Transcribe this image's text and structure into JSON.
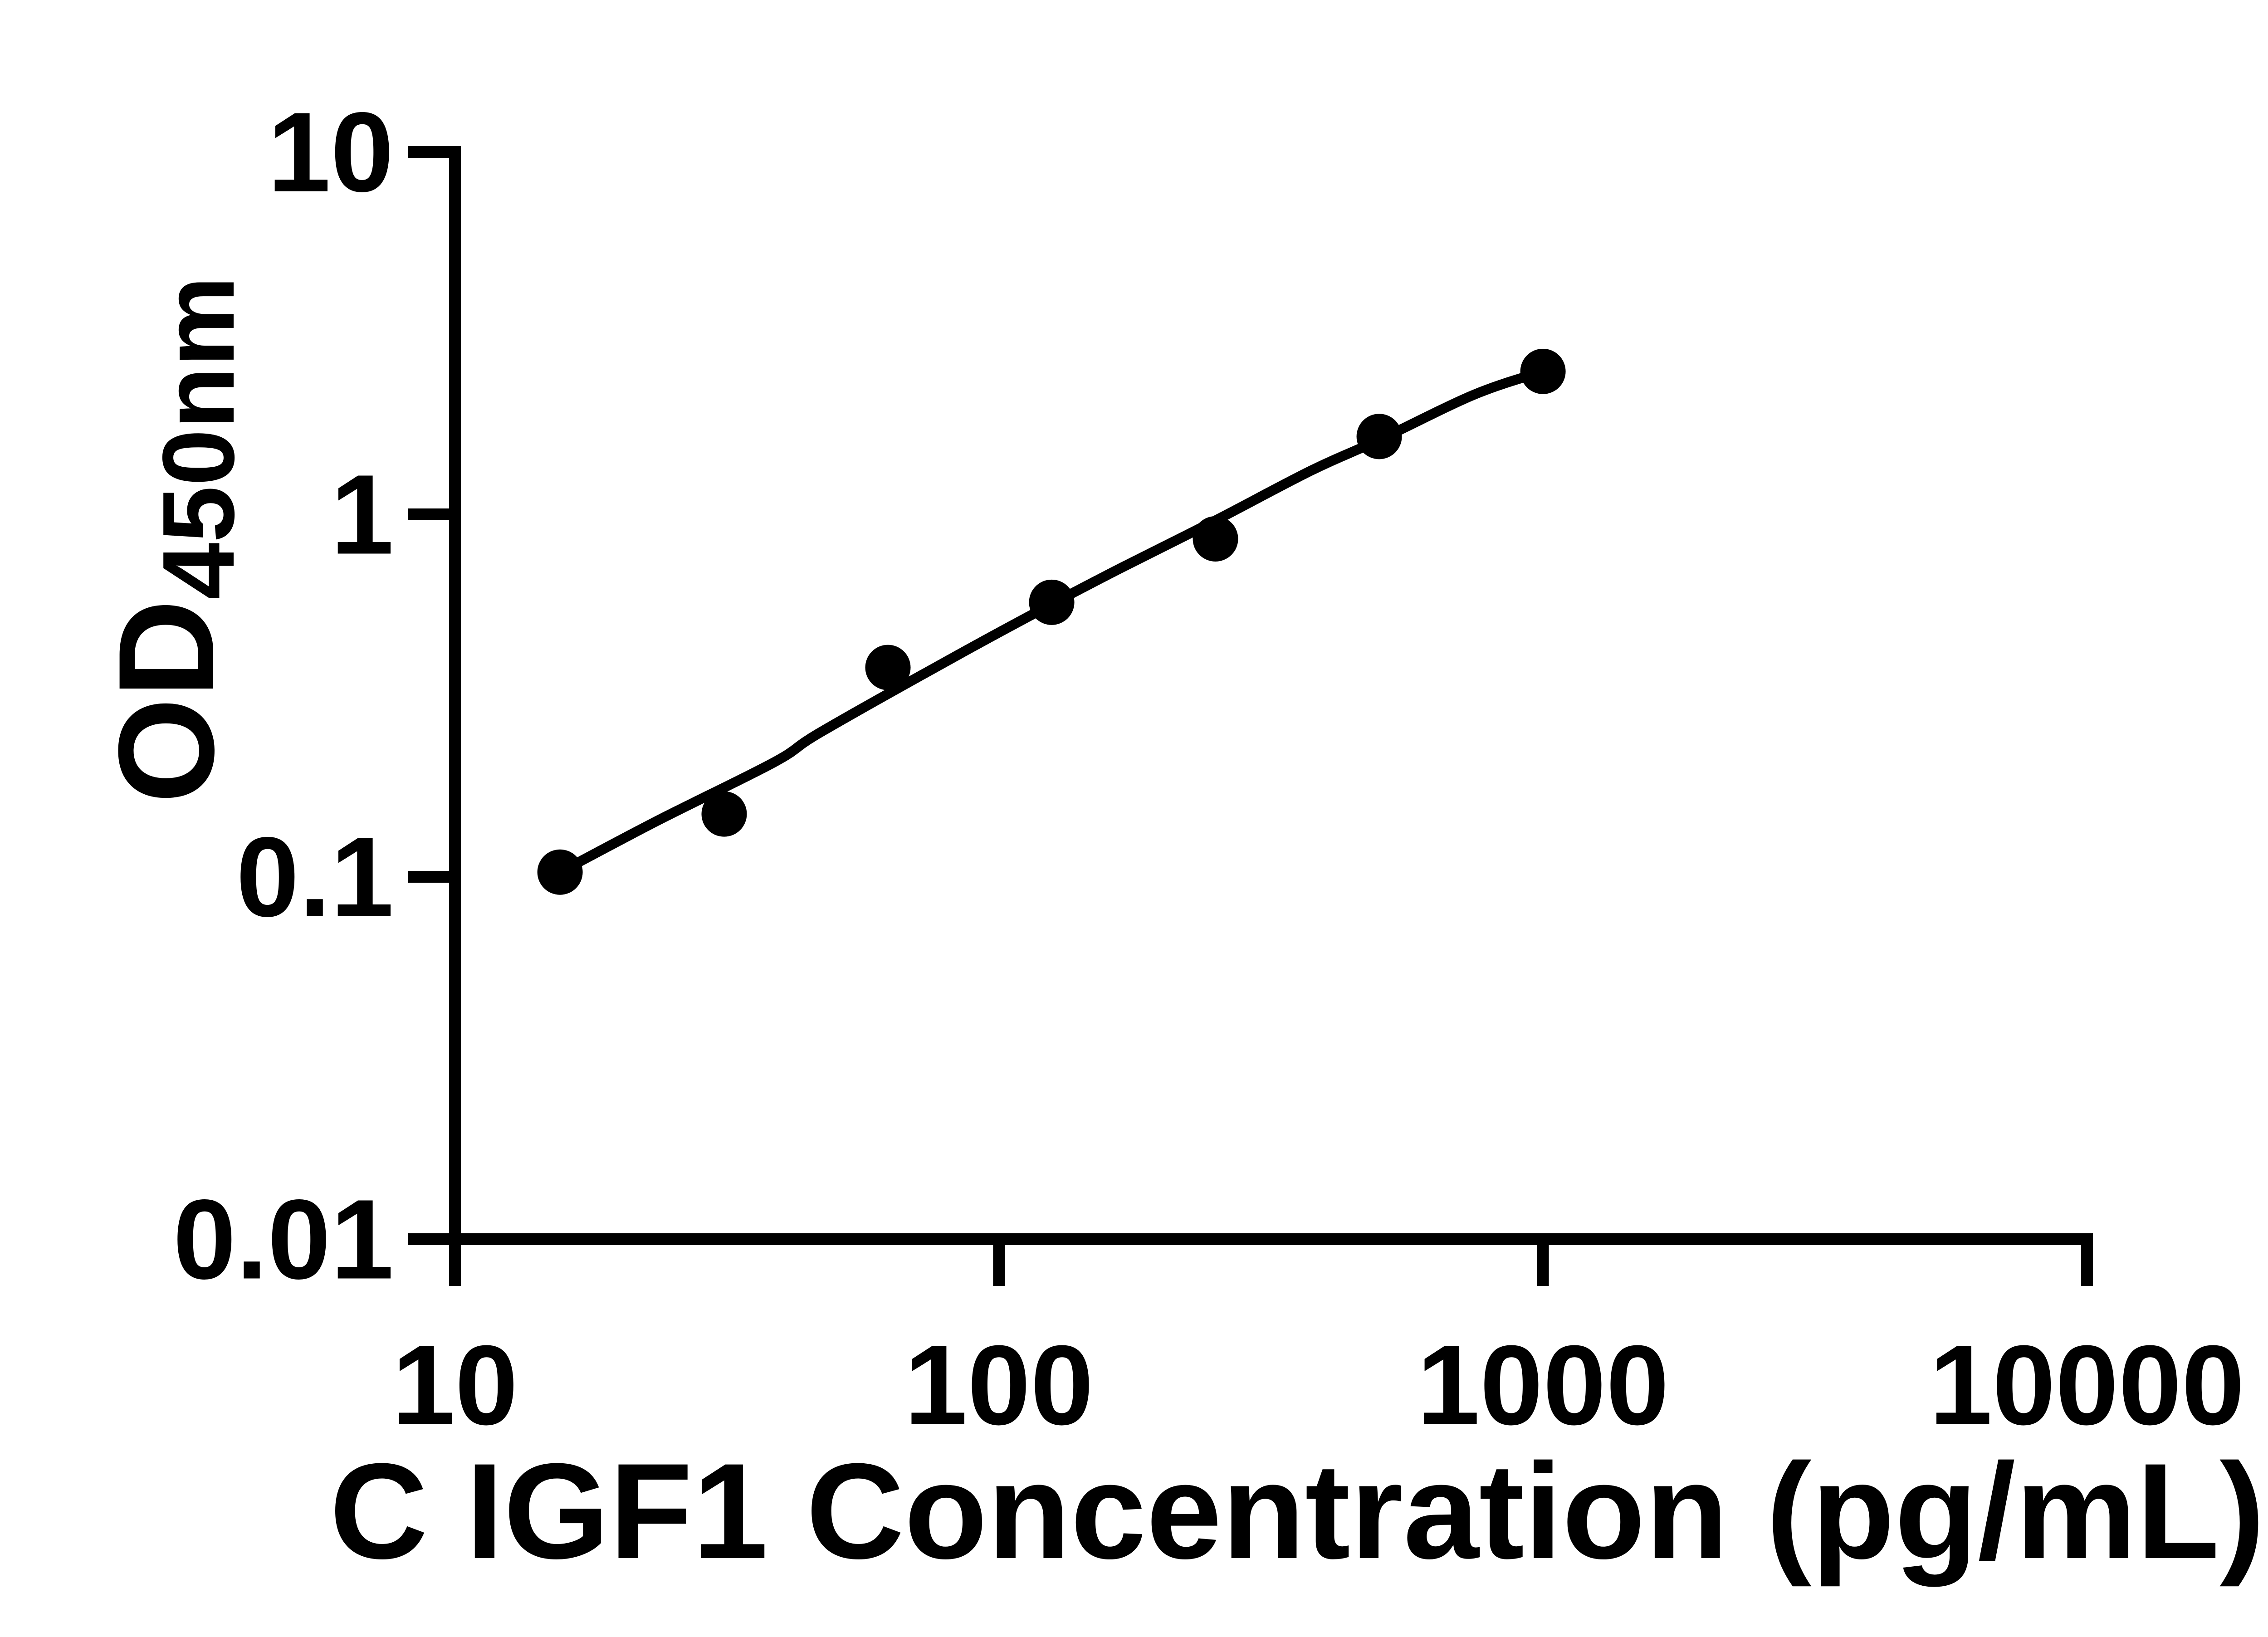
{
  "page": {
    "background": "#ffffff",
    "foreground": "#000000"
  },
  "chart_data": {
    "type": "scatter",
    "title": "",
    "xlabel": "C IGF1 Concentration (pg/mL)",
    "ylabel_main": "OD",
    "ylabel_sub": "450nm",
    "x_scale": "log",
    "y_scale": "log",
    "xlim": [
      10,
      10000
    ],
    "ylim": [
      0.01,
      10
    ],
    "grid": false,
    "legend_position": "none",
    "axis_color": "#000000",
    "x_ticks": [
      {
        "value": 10,
        "label": "10"
      },
      {
        "value": 100,
        "label": "100"
      },
      {
        "value": 1000,
        "label": "1000"
      },
      {
        "value": 10000,
        "label": "10000"
      }
    ],
    "y_ticks": [
      {
        "value": 0.01,
        "label": "0.01"
      },
      {
        "value": 0.1,
        "label": "0.1"
      },
      {
        "value": 1,
        "label": "1"
      },
      {
        "value": 10,
        "label": "10"
      }
    ],
    "series": [
      {
        "name": "standard-points",
        "type": "scatter",
        "marker": "circle",
        "color": "#000000",
        "points": [
          {
            "x": 15.6,
            "y": 0.103
          },
          {
            "x": 31.25,
            "y": 0.149
          },
          {
            "x": 62.5,
            "y": 0.378
          },
          {
            "x": 125,
            "y": 0.572
          },
          {
            "x": 250,
            "y": 0.856
          },
          {
            "x": 500,
            "y": 1.64
          },
          {
            "x": 1000,
            "y": 2.48
          }
        ]
      },
      {
        "name": "fit-curve",
        "type": "line",
        "color": "#000000",
        "points": [
          {
            "x": 15.6,
            "y": 0.103
          },
          {
            "x": 23.6,
            "y": 0.143
          },
          {
            "x": 38.6,
            "y": 0.207
          },
          {
            "x": 47.1,
            "y": 0.251
          },
          {
            "x": 83.7,
            "y": 0.408
          },
          {
            "x": 124.9,
            "y": 0.565
          },
          {
            "x": 167.2,
            "y": 0.71
          },
          {
            "x": 249.3,
            "y": 0.96
          },
          {
            "x": 374.5,
            "y": 1.32
          },
          {
            "x": 500,
            "y": 1.605
          },
          {
            "x": 747.4,
            "y": 2.14
          },
          {
            "x": 1000,
            "y": 2.48
          }
        ]
      }
    ]
  }
}
